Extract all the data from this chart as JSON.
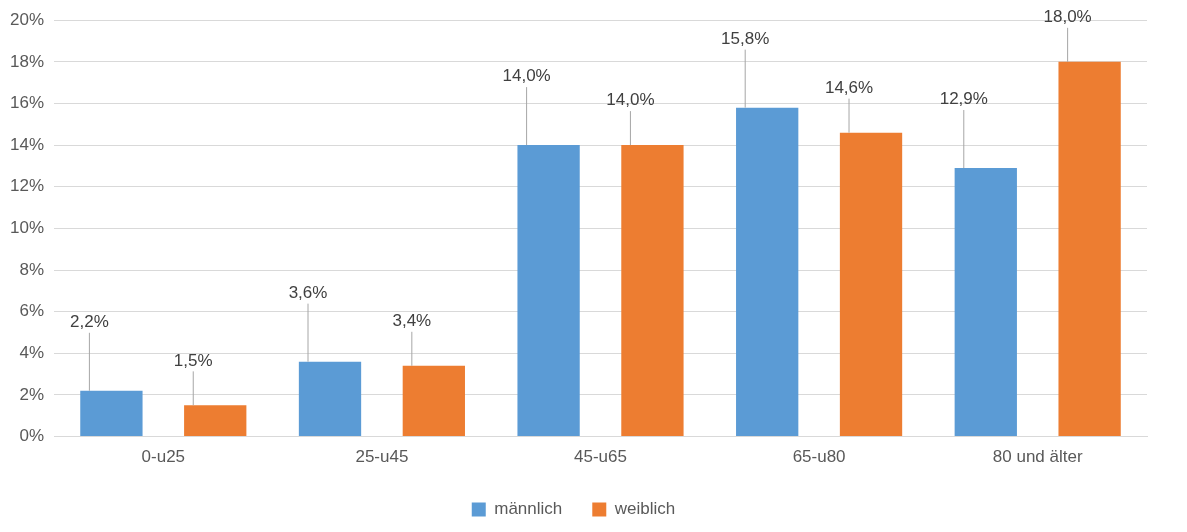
{
  "chart_data": {
    "type": "bar",
    "categories": [
      "0-u25",
      "25-u45",
      "45-u65",
      "65-u80",
      "80 und älter"
    ],
    "series": [
      {
        "name": "männlich",
        "color": "#5b9bd5",
        "values": [
          2.2,
          3.6,
          14.0,
          15.8,
          12.9
        ],
        "value_labels": [
          "2,2%",
          "3,6%",
          "14,0%",
          "15,8%",
          "12,9%"
        ]
      },
      {
        "name": "weiblich",
        "color": "#ed7d31",
        "values": [
          1.5,
          3.4,
          14.0,
          14.6,
          18.0
        ],
        "value_labels": [
          "1,5%",
          "3,4%",
          "14,0%",
          "14,6%",
          "18,0%"
        ]
      }
    ],
    "ylim": [
      0,
      20
    ],
    "yticks": [
      {
        "value": 0,
        "label": "0%"
      },
      {
        "value": 2,
        "label": "2%"
      },
      {
        "value": 4,
        "label": "4%"
      },
      {
        "value": 6,
        "label": "6%"
      },
      {
        "value": 8,
        "label": "8%"
      },
      {
        "value": 10,
        "label": "10%"
      },
      {
        "value": 12,
        "label": "12%"
      },
      {
        "value": 14,
        "label": "14%"
      },
      {
        "value": 16,
        "label": "16%"
      },
      {
        "value": 18,
        "label": "18%"
      },
      {
        "value": 20,
        "label": "20%"
      }
    ],
    "grid": "y",
    "legend": "bottom"
  }
}
